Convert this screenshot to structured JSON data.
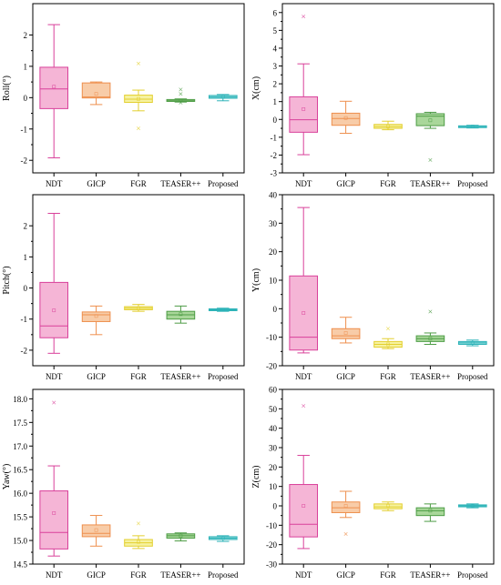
{
  "colors": {
    "NDT": {
      "fill": "#f5b5d6",
      "stroke": "#d9409a"
    },
    "GICP": {
      "fill": "#f8cca8",
      "stroke": "#ee8f4d"
    },
    "FGR": {
      "fill": "#f6f2a0",
      "stroke": "#e3cf2f"
    },
    "TEASER++": {
      "fill": "#a9d79a",
      "stroke": "#4d9c45"
    },
    "Proposed": {
      "fill": "#99dede",
      "stroke": "#2db3b8"
    }
  },
  "chart_data": [
    {
      "type": "box",
      "ylabel": "Roll(°)",
      "categories": [
        "NDT",
        "GICP",
        "FGR",
        "TEASER++",
        "Proposed"
      ],
      "ylim": [
        -2.4,
        3.0
      ],
      "yticks": [
        -2,
        -1,
        0,
        1,
        2
      ],
      "ytick_labels": [
        "-2",
        "-1",
        "0",
        "1",
        "2"
      ],
      "boxes": [
        {
          "min": -1.92,
          "q1": -0.35,
          "median": 0.28,
          "q3": 0.97,
          "max": 2.33,
          "mean": 0.35,
          "outliers": []
        },
        {
          "min": -0.22,
          "q1": -0.01,
          "median": 0.02,
          "q3": 0.47,
          "max": 0.5,
          "mean": 0.12,
          "outliers": []
        },
        {
          "min": -0.42,
          "q1": -0.15,
          "median": -0.05,
          "q3": 0.08,
          "max": 0.24,
          "mean": -0.04,
          "outliers": [
            1.09,
            -0.98
          ]
        },
        {
          "min": -0.14,
          "q1": -0.12,
          "median": -0.1,
          "q3": -0.06,
          "max": -0.04,
          "mean": -0.09,
          "outliers": [
            0.26,
            0.12,
            -0.16
          ]
        },
        {
          "min": -0.1,
          "q1": -0.02,
          "median": 0.02,
          "q3": 0.07,
          "max": 0.1,
          "mean": 0.03,
          "outliers": []
        }
      ]
    },
    {
      "type": "box",
      "ylabel": "X(cm)",
      "categories": [
        "NDT",
        "GICP",
        "FGR",
        "TEASER++",
        "Proposed"
      ],
      "ylim": [
        -3,
        6.5
      ],
      "yticks": [
        -3,
        -2,
        -1,
        0,
        1,
        2,
        3,
        4,
        5,
        6
      ],
      "ytick_labels": [
        "-3",
        "-2",
        "-1",
        "0",
        "1",
        "2",
        "3",
        "4",
        "5",
        "6"
      ],
      "boxes": [
        {
          "min": -1.98,
          "q1": -0.72,
          "median": -0.02,
          "q3": 1.27,
          "max": 3.12,
          "mean": 0.58,
          "outliers": [
            5.78
          ]
        },
        {
          "min": -0.78,
          "q1": -0.33,
          "median": 0.05,
          "q3": 0.35,
          "max": 1.02,
          "mean": 0.08,
          "outliers": []
        },
        {
          "min": -0.58,
          "q1": -0.5,
          "median": -0.4,
          "q3": -0.28,
          "max": -0.1,
          "mean": -0.38,
          "outliers": []
        },
        {
          "min": -0.5,
          "q1": -0.35,
          "median": 0.18,
          "q3": 0.32,
          "max": 0.4,
          "mean": -0.05,
          "outliers": [
            -2.28
          ]
        },
        {
          "min": -0.48,
          "q1": -0.46,
          "median": -0.4,
          "q3": -0.36,
          "max": -0.33,
          "mean": -0.4,
          "outliers": []
        }
      ]
    },
    {
      "type": "box",
      "ylabel": "Pitch(°)",
      "categories": [
        "NDT",
        "GICP",
        "FGR",
        "TEASER++",
        "Proposed"
      ],
      "ylim": [
        -2.5,
        3.0
      ],
      "yticks": [
        -2,
        -1,
        0,
        1,
        2
      ],
      "ytick_labels": [
        "-2",
        "-1",
        "0",
        "1",
        "2"
      ],
      "boxes": [
        {
          "min": -2.1,
          "q1": -1.6,
          "median": -1.22,
          "q3": 0.18,
          "max": 2.4,
          "mean": -0.72,
          "outliers": []
        },
        {
          "min": -1.5,
          "q1": -1.08,
          "median": -0.86,
          "q3": -0.77,
          "max": -0.58,
          "mean": -0.9,
          "outliers": []
        },
        {
          "min": -0.75,
          "q1": -0.7,
          "median": -0.65,
          "q3": -0.6,
          "max": -0.53,
          "mean": -0.65,
          "outliers": []
        },
        {
          "min": -1.13,
          "q1": -1.0,
          "median": -0.86,
          "q3": -0.75,
          "max": -0.58,
          "mean": -0.84,
          "outliers": []
        },
        {
          "min": -0.75,
          "q1": -0.73,
          "median": -0.7,
          "q3": -0.67,
          "max": -0.65,
          "mean": -0.7,
          "outliers": []
        }
      ]
    },
    {
      "type": "box",
      "ylabel": "Y(cm)",
      "categories": [
        "NDT",
        "GICP",
        "FGR",
        "TEASER++",
        "Proposed"
      ],
      "ylim": [
        -20,
        40
      ],
      "yticks": [
        -20,
        -10,
        0,
        10,
        20,
        30,
        40
      ],
      "ytick_labels": [
        "-20",
        "-10",
        "0",
        "10",
        "20",
        "30",
        "40"
      ],
      "boxes": [
        {
          "min": -15.5,
          "q1": -14.5,
          "median": -10.0,
          "q3": 11.5,
          "max": 35.5,
          "mean": -1.5,
          "outliers": []
        },
        {
          "min": -12.0,
          "q1": -10.5,
          "median": -9.5,
          "q3": -7.0,
          "max": -3.0,
          "mean": -8.5,
          "outliers": []
        },
        {
          "min": -14.0,
          "q1": -13.5,
          "median": -12.5,
          "q3": -11.5,
          "max": -10.5,
          "mean": -12.5,
          "outliers": [
            -7.0
          ]
        },
        {
          "min": -12.5,
          "q1": -11.5,
          "median": -10.5,
          "q3": -9.5,
          "max": -8.5,
          "mean": -10.5,
          "outliers": [
            -1.0
          ]
        },
        {
          "min": -13.0,
          "q1": -12.5,
          "median": -12.0,
          "q3": -11.5,
          "max": -11.0,
          "mean": -12.0,
          "outliers": []
        }
      ]
    },
    {
      "type": "box",
      "ylabel": "Yaw(°)",
      "categories": [
        "NDT",
        "GICP",
        "FGR",
        "TEASER++",
        "Proposed"
      ],
      "ylim": [
        14.5,
        18.2
      ],
      "yticks": [
        14.5,
        15.0,
        15.5,
        16.0,
        16.5,
        17.0,
        17.5,
        18.0
      ],
      "ytick_labels": [
        "14.5",
        "15.0",
        "15.5",
        "16.0",
        "16.5",
        "17.0",
        "17.5",
        "18.0"
      ],
      "boxes": [
        {
          "min": 14.67,
          "q1": 14.82,
          "median": 15.17,
          "q3": 16.05,
          "max": 16.58,
          "mean": 15.58,
          "outliers": [
            17.92
          ]
        },
        {
          "min": 14.88,
          "q1": 15.08,
          "median": 15.15,
          "q3": 15.33,
          "max": 15.53,
          "mean": 15.22,
          "outliers": []
        },
        {
          "min": 14.83,
          "q1": 14.88,
          "median": 14.95,
          "q3": 15.02,
          "max": 15.1,
          "mean": 14.97,
          "outliers": [
            15.36
          ]
        },
        {
          "min": 14.99,
          "q1": 15.05,
          "median": 15.1,
          "q3": 15.14,
          "max": 15.16,
          "mean": 15.1,
          "outliers": []
        },
        {
          "min": 14.98,
          "q1": 15.02,
          "median": 15.05,
          "q3": 15.08,
          "max": 15.1,
          "mean": 15.05,
          "outliers": []
        }
      ]
    },
    {
      "type": "box",
      "ylabel": "Z(cm)",
      "categories": [
        "NDT",
        "GICP",
        "FGR",
        "TEASER++",
        "Proposed"
      ],
      "ylim": [
        -30,
        60
      ],
      "yticks": [
        -30,
        -20,
        -10,
        0,
        10,
        20,
        30,
        40,
        50,
        60
      ],
      "ytick_labels": [
        "-30",
        "-20",
        "-10",
        "0",
        "10",
        "20",
        "30",
        "40",
        "50",
        "60"
      ],
      "boxes": [
        {
          "min": -22.0,
          "q1": -16.0,
          "median": -9.5,
          "q3": 11.0,
          "max": 26.0,
          "mean": 0.0,
          "outliers": [
            51.5
          ]
        },
        {
          "min": -6.0,
          "q1": -3.5,
          "median": -1.0,
          "q3": 2.0,
          "max": 7.5,
          "mean": 0.0,
          "outliers": [
            -14.5
          ]
        },
        {
          "min": -2.5,
          "q1": -1.5,
          "median": -0.5,
          "q3": 1.0,
          "max": 2.0,
          "mean": 0.0,
          "outliers": []
        },
        {
          "min": -8.0,
          "q1": -5.0,
          "median": -2.5,
          "q3": -1.0,
          "max": 1.0,
          "mean": -2.5,
          "outliers": []
        },
        {
          "min": -1.0,
          "q1": -0.5,
          "median": 0.0,
          "q3": 0.5,
          "max": 1.0,
          "mean": 0.0,
          "outliers": []
        }
      ]
    }
  ]
}
